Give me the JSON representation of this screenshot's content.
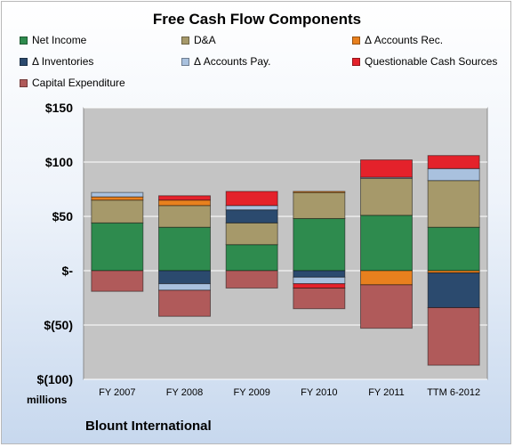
{
  "chart_data": {
    "type": "bar",
    "stacked": true,
    "title": "Free Cash Flow Components",
    "categories": [
      "FY 2007",
      "FY 2008",
      "FY 2009",
      "FY 2010",
      "FY 2011",
      "TTM 6-2012"
    ],
    "series": [
      {
        "name": "Net Income",
        "color": "#2e8b4e",
        "values": [
          44,
          40,
          24,
          48,
          51,
          40
        ]
      },
      {
        "name": "D&A",
        "color": "#a6996a",
        "values": [
          21,
          20,
          20,
          24,
          34,
          43
        ]
      },
      {
        "name": "Δ Accounts Rec.",
        "color": "#e8801e",
        "values": [
          3,
          5,
          0,
          1,
          -13,
          -2
        ]
      },
      {
        "name": "Δ Inventories",
        "color": "#2b4a6e",
        "values": [
          0,
          -12,
          12,
          -6,
          0,
          -32
        ]
      },
      {
        "name": "Δ Accounts Pay.",
        "color": "#a9c1de",
        "values": [
          4,
          -6,
          4,
          -6,
          1,
          11
        ]
      },
      {
        "name": "Questionable Cash Sources",
        "color": "#e4222b",
        "values": [
          0,
          4,
          13,
          -4,
          16,
          12
        ]
      },
      {
        "name": "Capital Expenditure",
        "color": "#b05a5a",
        "values": [
          -19,
          -24,
          -16,
          -19,
          -40,
          -53
        ]
      }
    ],
    "y_ticks": [
      150,
      100,
      50,
      0,
      -50,
      -100
    ],
    "y_tick_labels": [
      "$150",
      "$100",
      "$50",
      "$-",
      "$(50)",
      "$(100)"
    ],
    "ylim": [
      -100,
      150
    ],
    "ylabel": "millions",
    "grid": true,
    "legend_position": "top"
  },
  "footer": {
    "company": "Blount International"
  }
}
